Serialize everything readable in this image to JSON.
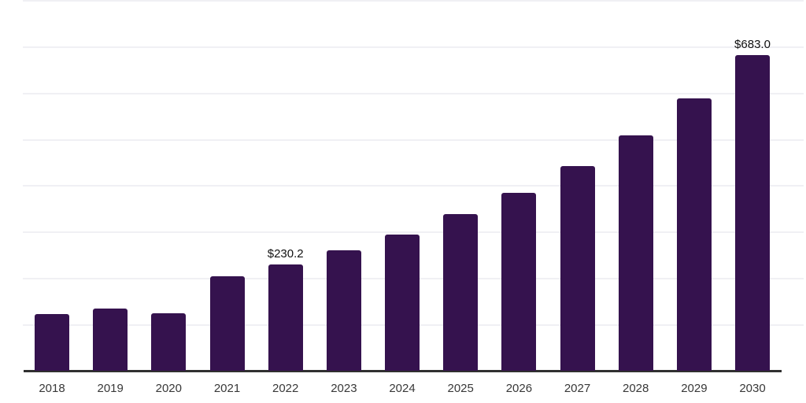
{
  "chart_data": {
    "type": "bar",
    "title": "",
    "xlabel": "",
    "ylabel": "",
    "categories": [
      "2018",
      "2019",
      "2020",
      "2021",
      "2022",
      "2023",
      "2024",
      "2025",
      "2026",
      "2027",
      "2028",
      "2029",
      "2030"
    ],
    "values": [
      123.5,
      135.5,
      125.0,
      204.8,
      230.2,
      260.6,
      294.6,
      338.7,
      386.2,
      443.9,
      510.0,
      589.7,
      683.0
    ],
    "value_labels": {
      "2022": "$230.2",
      "2030": "$683.0"
    },
    "ylim": [
      0,
      800
    ],
    "gridline_interval": 100,
    "grid": true,
    "legend": false,
    "y_tick_labels_visible": false,
    "colors": {
      "bar": "#35124E",
      "gridline": "#F0F0F4",
      "axis_line": "#303030",
      "value_label": "#111111",
      "tick_label": "#383838",
      "background": "#FFFFFF"
    }
  }
}
